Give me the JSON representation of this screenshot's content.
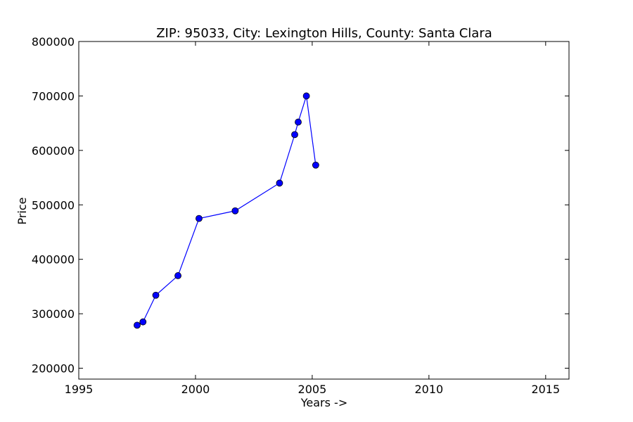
{
  "chart_data": {
    "type": "line",
    "title": "ZIP: 95033, City: Lexington Hills, County: Santa Clara",
    "xlabel": "Years ->",
    "ylabel": "Price",
    "xlim": [
      1995,
      2016
    ],
    "ylim": [
      180000,
      800000
    ],
    "xticks": [
      1995,
      2000,
      2005,
      2010,
      2015
    ],
    "yticks": [
      200000,
      300000,
      400000,
      500000,
      600000,
      700000,
      800000
    ],
    "grid": false,
    "legend": "none",
    "series": [
      {
        "color": "#0000ff",
        "marker": "circle",
        "points": [
          {
            "x": 1997.5,
            "y": 279000
          },
          {
            "x": 1997.75,
            "y": 285000
          },
          {
            "x": 1998.3,
            "y": 334000
          },
          {
            "x": 1999.25,
            "y": 370000
          },
          {
            "x": 2000.15,
            "y": 475000
          },
          {
            "x": 2001.7,
            "y": 489000
          },
          {
            "x": 2003.6,
            "y": 540000
          },
          {
            "x": 2004.25,
            "y": 629000
          },
          {
            "x": 2004.4,
            "y": 652000
          },
          {
            "x": 2004.75,
            "y": 700000
          },
          {
            "x": 2005.15,
            "y": 573000
          }
        ]
      }
    ]
  }
}
